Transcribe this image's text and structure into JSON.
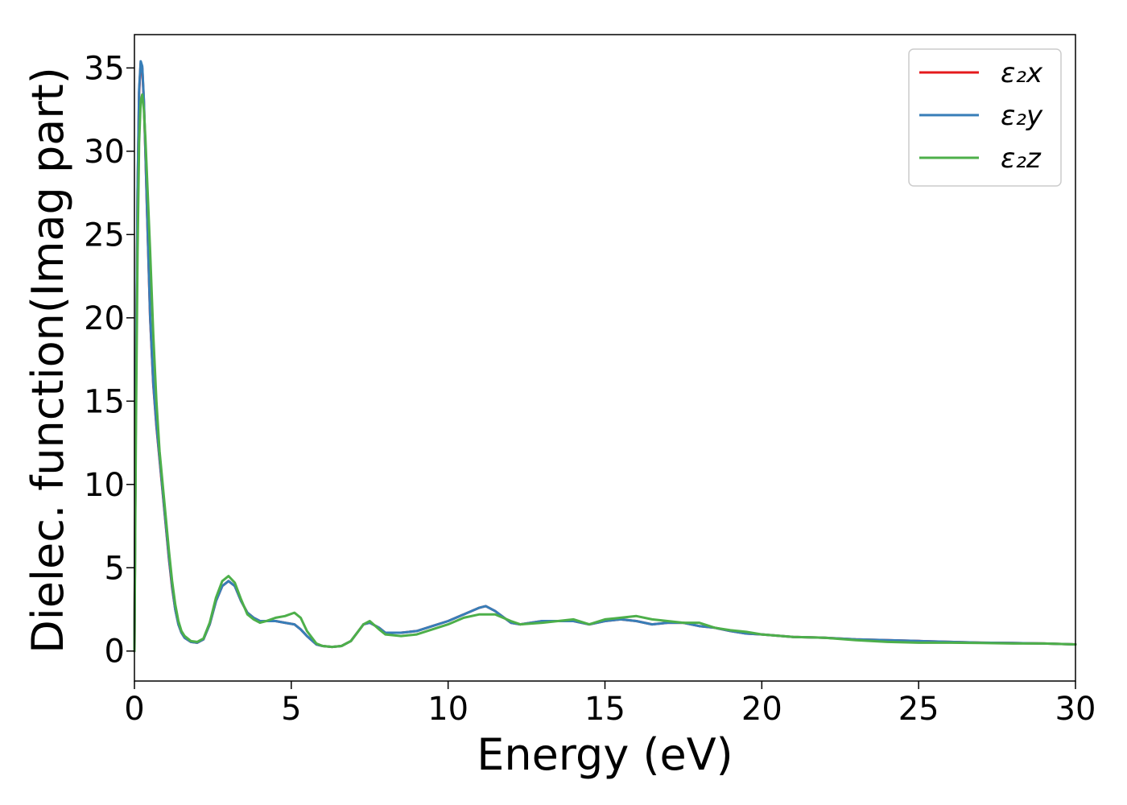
{
  "chart_data": {
    "type": "line",
    "title": "",
    "xlabel": "Energy (eV)",
    "ylabel": "Dielec. function(Imag part)",
    "xlim": [
      0,
      30
    ],
    "ylim": [
      -1.8,
      37
    ],
    "xticks": [
      0,
      5,
      10,
      15,
      20,
      25,
      30
    ],
    "yticks": [
      0,
      5,
      10,
      15,
      20,
      25,
      30,
      35
    ],
    "legend": {
      "placement": "top-right",
      "framed": true
    },
    "grid": false,
    "series": [
      {
        "name": "ε₂x",
        "color": "#e41a1c",
        "x": [
          0,
          0.05,
          0.1,
          0.15,
          0.2,
          0.25,
          0.3,
          0.35,
          0.4,
          0.5,
          0.6,
          0.7,
          0.8,
          0.9,
          1.0,
          1.1,
          1.2,
          1.3,
          1.4,
          1.5,
          1.6,
          1.8,
          2.0,
          2.2,
          2.4,
          2.6,
          2.8,
          3.0,
          3.2,
          3.4,
          3.6,
          3.8,
          4.0,
          4.2,
          4.5,
          4.8,
          5.1,
          5.3,
          5.5,
          5.8,
          6.0,
          6.3,
          6.6,
          6.9,
          7.1,
          7.3,
          7.5,
          7.8,
          8.0,
          8.5,
          9.0,
          9.5,
          10.0,
          10.5,
          11.0,
          11.2,
          11.5,
          12.0,
          12.3,
          13.0,
          13.5,
          14.0,
          14.5,
          15.0,
          15.5,
          16.0,
          16.5,
          17.0,
          17.5,
          18.0,
          18.5,
          19.0,
          19.5,
          20.0,
          21.0,
          22.0,
          23.0,
          24.0,
          25.0,
          26.0,
          27.0,
          28.0,
          29.0,
          30.0
        ],
        "values": [
          0.0,
          16.0,
          27.5,
          33.5,
          35.3,
          35.0,
          33.0,
          30.0,
          26.5,
          20.0,
          16.0,
          13.5,
          11.5,
          9.5,
          7.5,
          5.5,
          3.8,
          2.5,
          1.6,
          1.1,
          0.8,
          0.55,
          0.5,
          0.7,
          1.6,
          3.0,
          3.9,
          4.2,
          3.9,
          3.0,
          2.3,
          2.0,
          1.8,
          1.8,
          1.8,
          1.7,
          1.6,
          1.3,
          0.9,
          0.4,
          0.3,
          0.25,
          0.3,
          0.6,
          1.1,
          1.6,
          1.7,
          1.4,
          1.1,
          1.1,
          1.2,
          1.5,
          1.8,
          2.2,
          2.6,
          2.7,
          2.4,
          1.7,
          1.6,
          1.8,
          1.8,
          1.8,
          1.6,
          1.8,
          1.9,
          1.8,
          1.6,
          1.7,
          1.7,
          1.5,
          1.4,
          1.2,
          1.05,
          1.0,
          0.85,
          0.8,
          0.7,
          0.65,
          0.6,
          0.55,
          0.5,
          0.48,
          0.45,
          0.4
        ]
      },
      {
        "name": "ε₂y",
        "color": "#377eb8",
        "x": [
          0,
          0.05,
          0.1,
          0.15,
          0.2,
          0.25,
          0.3,
          0.35,
          0.4,
          0.5,
          0.6,
          0.7,
          0.8,
          0.9,
          1.0,
          1.1,
          1.2,
          1.3,
          1.4,
          1.5,
          1.6,
          1.8,
          2.0,
          2.2,
          2.4,
          2.6,
          2.8,
          3.0,
          3.2,
          3.4,
          3.6,
          3.8,
          4.0,
          4.2,
          4.5,
          4.8,
          5.1,
          5.3,
          5.5,
          5.8,
          6.0,
          6.3,
          6.6,
          6.9,
          7.1,
          7.3,
          7.5,
          7.8,
          8.0,
          8.5,
          9.0,
          9.5,
          10.0,
          10.5,
          11.0,
          11.2,
          11.5,
          12.0,
          12.3,
          13.0,
          13.5,
          14.0,
          14.5,
          15.0,
          15.5,
          16.0,
          16.5,
          17.0,
          17.5,
          18.0,
          18.5,
          19.0,
          19.5,
          20.0,
          21.0,
          22.0,
          23.0,
          24.0,
          25.0,
          26.0,
          27.0,
          28.0,
          29.0,
          30.0
        ],
        "values": [
          0.0,
          16.2,
          27.7,
          33.7,
          35.4,
          35.1,
          33.1,
          30.1,
          26.6,
          20.1,
          16.1,
          13.6,
          11.6,
          9.6,
          7.6,
          5.6,
          3.9,
          2.5,
          1.6,
          1.1,
          0.8,
          0.55,
          0.5,
          0.7,
          1.6,
          3.0,
          3.9,
          4.2,
          3.9,
          3.0,
          2.3,
          2.0,
          1.8,
          1.8,
          1.8,
          1.7,
          1.6,
          1.3,
          0.9,
          0.4,
          0.3,
          0.25,
          0.3,
          0.6,
          1.1,
          1.6,
          1.7,
          1.4,
          1.1,
          1.1,
          1.2,
          1.5,
          1.8,
          2.2,
          2.6,
          2.7,
          2.4,
          1.7,
          1.6,
          1.8,
          1.8,
          1.8,
          1.6,
          1.8,
          1.9,
          1.8,
          1.6,
          1.7,
          1.7,
          1.5,
          1.4,
          1.2,
          1.05,
          1.0,
          0.85,
          0.8,
          0.7,
          0.65,
          0.6,
          0.55,
          0.5,
          0.48,
          0.45,
          0.4
        ]
      },
      {
        "name": "ε₂z",
        "color": "#4daf4a",
        "x": [
          0,
          0.05,
          0.1,
          0.15,
          0.2,
          0.25,
          0.3,
          0.35,
          0.4,
          0.5,
          0.6,
          0.7,
          0.8,
          0.9,
          1.0,
          1.1,
          1.2,
          1.3,
          1.4,
          1.5,
          1.6,
          1.8,
          2.0,
          2.2,
          2.4,
          2.6,
          2.8,
          3.0,
          3.2,
          3.4,
          3.6,
          3.8,
          4.0,
          4.2,
          4.5,
          4.8,
          5.1,
          5.3,
          5.5,
          5.8,
          6.0,
          6.3,
          6.6,
          6.9,
          7.1,
          7.3,
          7.5,
          7.8,
          8.0,
          8.5,
          9.0,
          9.5,
          10.0,
          10.5,
          11.0,
          11.2,
          11.5,
          12.0,
          12.3,
          13.0,
          13.5,
          14.0,
          14.5,
          15.0,
          15.5,
          16.0,
          16.5,
          17.0,
          17.5,
          18.0,
          18.5,
          19.0,
          19.5,
          20.0,
          21.0,
          22.0,
          23.0,
          24.0,
          25.0,
          26.0,
          27.0,
          28.0,
          29.0,
          30.0
        ],
        "values": [
          0.0,
          13.5,
          24.0,
          30.5,
          33.0,
          33.4,
          32.5,
          30.8,
          28.5,
          24.0,
          19.0,
          15.0,
          12.0,
          10.0,
          8.0,
          6.0,
          4.2,
          2.8,
          1.8,
          1.2,
          0.9,
          0.6,
          0.55,
          0.75,
          1.7,
          3.2,
          4.2,
          4.5,
          4.1,
          3.1,
          2.2,
          1.9,
          1.7,
          1.8,
          2.0,
          2.1,
          2.3,
          2.0,
          1.2,
          0.45,
          0.3,
          0.25,
          0.3,
          0.6,
          1.1,
          1.6,
          1.8,
          1.3,
          1.0,
          0.9,
          1.0,
          1.3,
          1.6,
          2.0,
          2.2,
          2.2,
          2.2,
          1.8,
          1.6,
          1.7,
          1.8,
          1.9,
          1.6,
          1.9,
          2.0,
          2.1,
          1.9,
          1.8,
          1.7,
          1.7,
          1.4,
          1.25,
          1.15,
          1.0,
          0.85,
          0.8,
          0.65,
          0.55,
          0.5,
          0.5,
          0.48,
          0.45,
          0.45,
          0.4
        ]
      }
    ]
  }
}
